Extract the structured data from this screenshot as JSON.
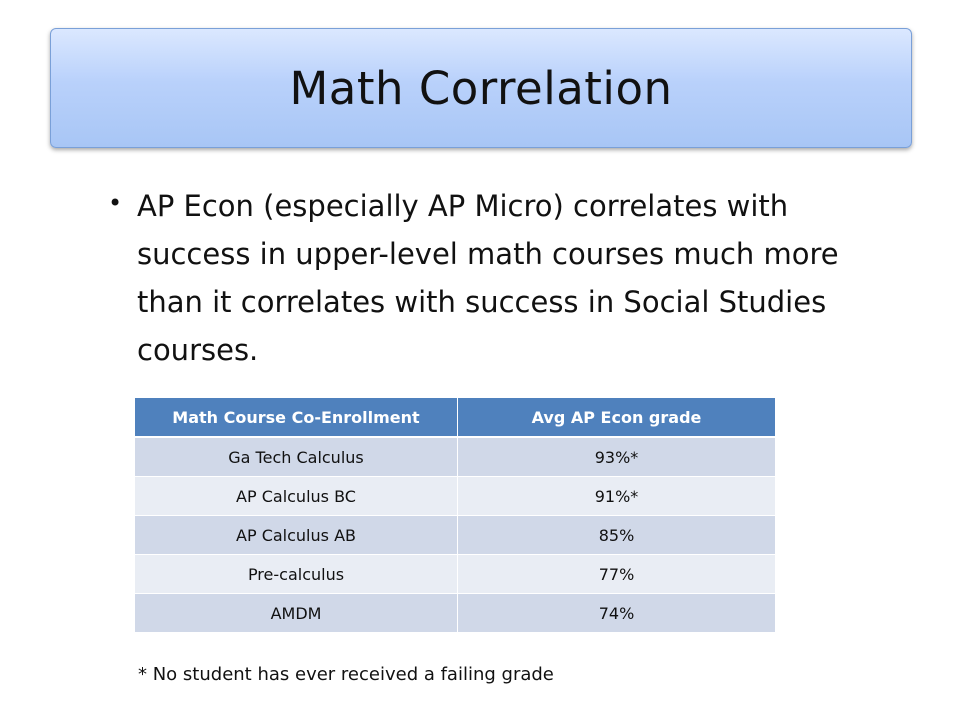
{
  "slide": {
    "title": "Math Correlation",
    "bullet_glyph": "•",
    "bullet_text": "AP Econ (especially AP Micro) correlates with success in upper-level math courses much more than it correlates with success in Social Studies courses.",
    "footnote": "* No student has ever received a failing grade"
  },
  "table": {
    "headers": [
      "Math Course Co-Enrollment",
      "Avg AP Econ grade"
    ],
    "rows": [
      {
        "course": "Ga Tech Calculus",
        "grade": "93%*"
      },
      {
        "course": "AP Calculus BC",
        "grade": "91%*"
      },
      {
        "course": "AP Calculus AB",
        "grade": "85%"
      },
      {
        "course": "Pre-calculus",
        "grade": "77%"
      },
      {
        "course": "AMDM",
        "grade": "74%"
      }
    ]
  },
  "colors": {
    "header_fill": "#4f81bd",
    "row_odd": "#d0d8e8",
    "row_even": "#e9edf4",
    "title_fill": "#b9d1fb"
  }
}
